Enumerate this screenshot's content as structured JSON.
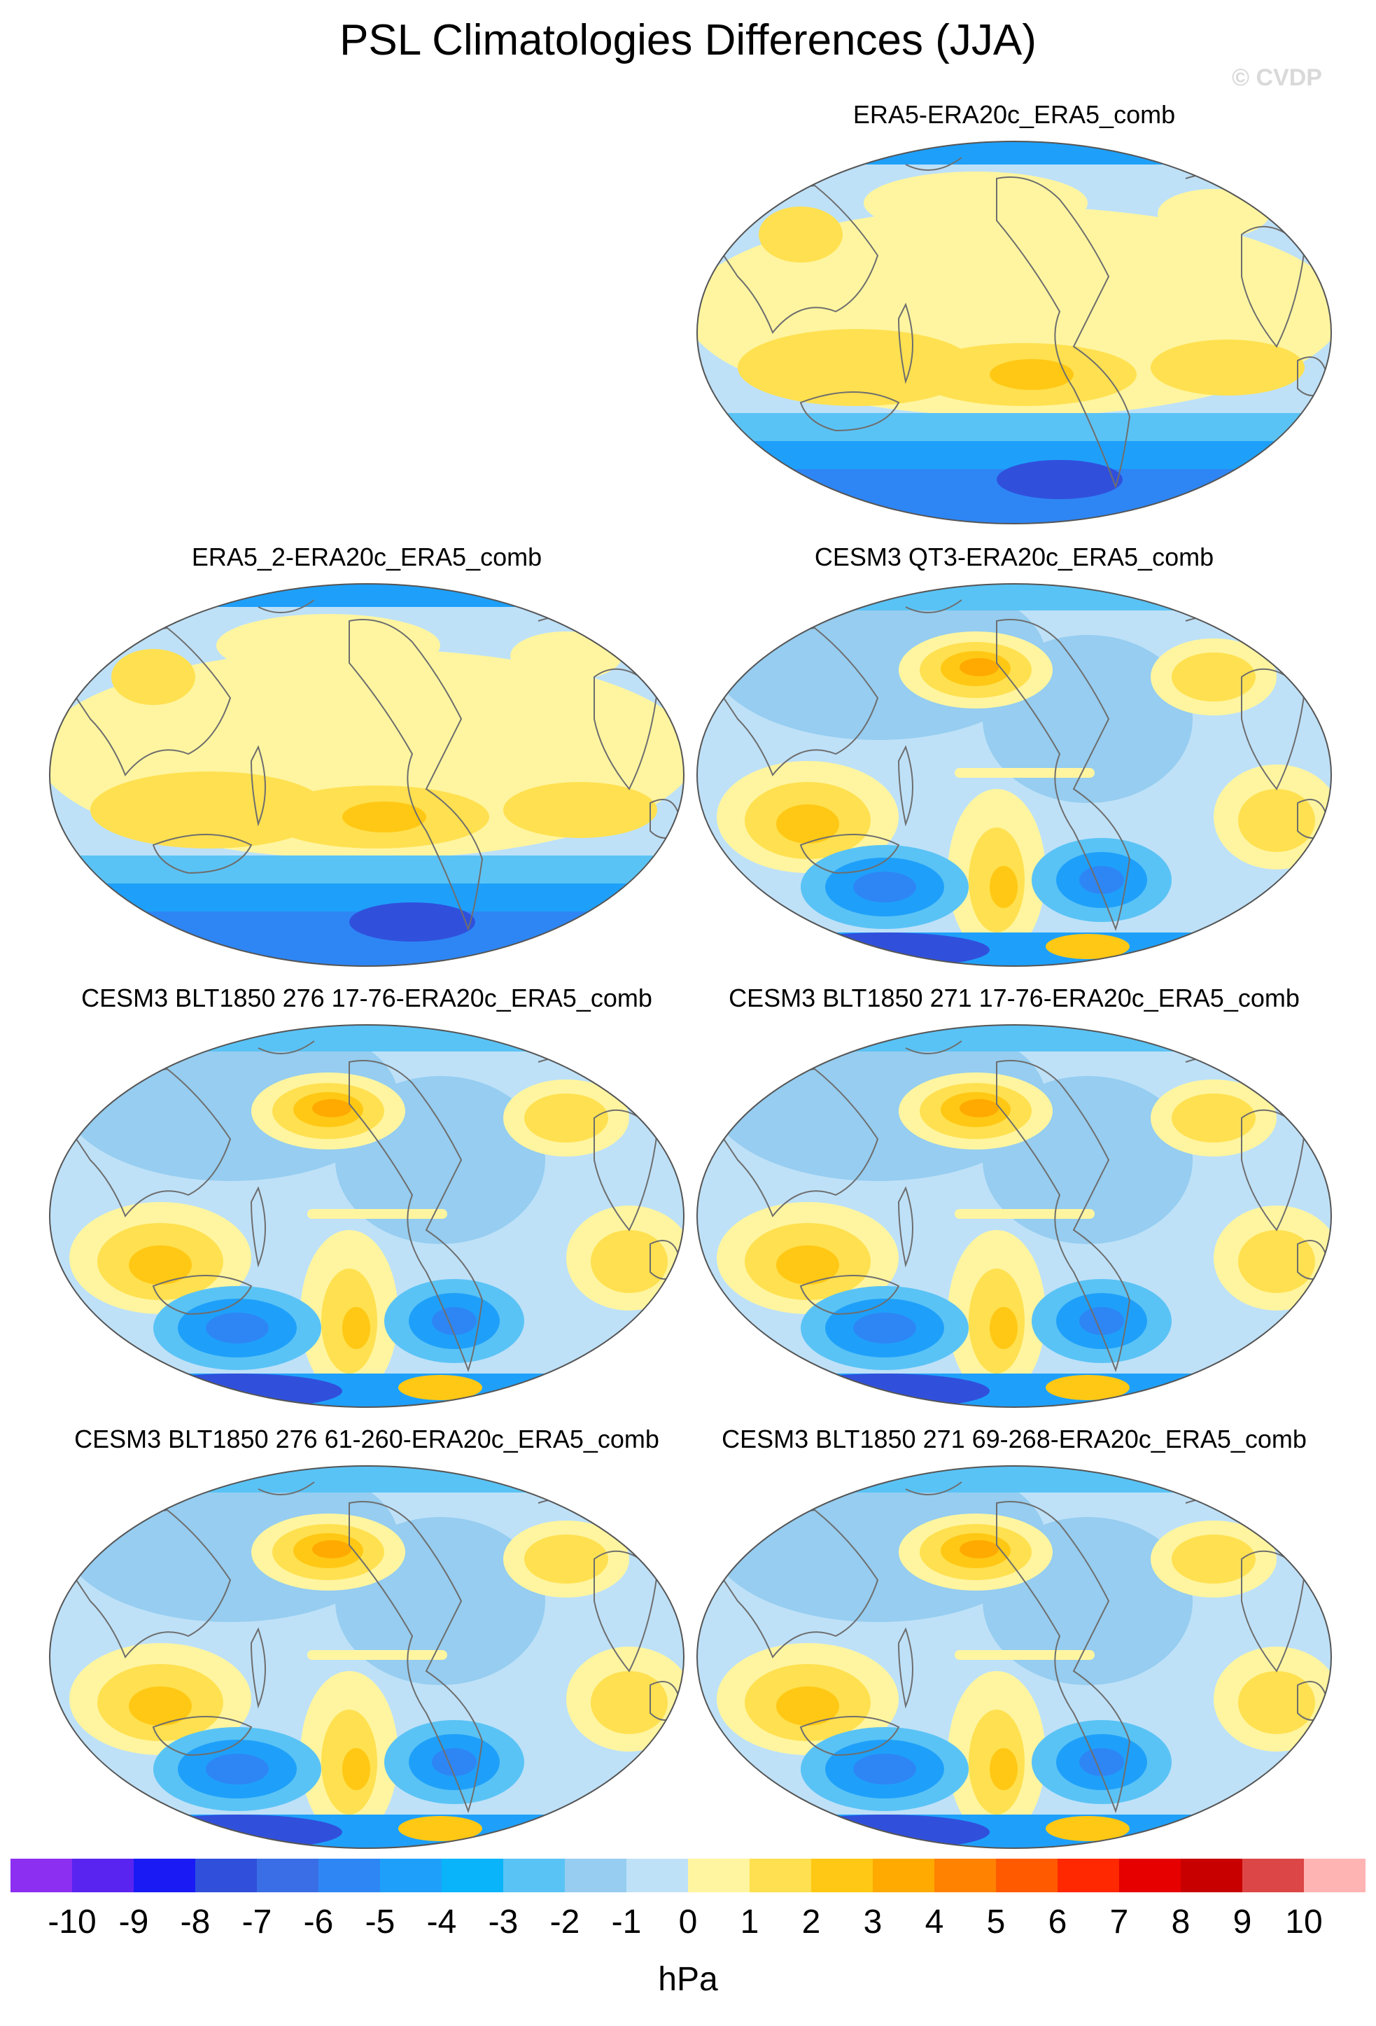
{
  "title": "PSL Climatologies Differences (JJA)",
  "watermark": "© CVDP",
  "panels": [
    {
      "label": "ERA5-ERA20c_ERA5_comb",
      "pattern": "reanalysis"
    },
    {
      "label": "ERA5_2-ERA20c_ERA5_comb",
      "pattern": "reanalysis"
    },
    {
      "label": "CESM3 QT3-ERA20c_ERA5_comb",
      "pattern": "model"
    },
    {
      "label": "CESM3 BLT1850 276 17-76-ERA20c_ERA5_comb",
      "pattern": "model"
    },
    {
      "label": "CESM3 BLT1850 271 17-76-ERA20c_ERA5_comb",
      "pattern": "model"
    },
    {
      "label": "CESM3 BLT1850 276 61-260-ERA20c_ERA5_comb",
      "pattern": "model"
    },
    {
      "label": "CESM3 BLT1850 271 69-268-ERA20c_ERA5_comb",
      "pattern": "model"
    }
  ],
  "colorbar": {
    "unit": "hPa",
    "ticks": [
      "-10",
      "-9",
      "-8",
      "-7",
      "-6",
      "-5",
      "-4",
      "-3",
      "-2",
      "-1",
      "0",
      "1",
      "2",
      "3",
      "4",
      "5",
      "6",
      "7",
      "8",
      "9",
      "10"
    ],
    "colors": [
      "#8c2ff0",
      "#5a24f0",
      "#1a1af5",
      "#3050dc",
      "#3a6ee6",
      "#2e86f5",
      "#1ea0fa",
      "#0ab4fa",
      "#5ac3f5",
      "#96cdf0",
      "#bee1f8",
      "#fff5a0",
      "#ffe050",
      "#ffc814",
      "#ffaa00",
      "#ff8200",
      "#ff5a00",
      "#ff2800",
      "#e60000",
      "#c80000",
      "#dc4646",
      "#ffb4b4"
    ]
  },
  "map_colors": {
    "ocean_base": "#bee1f8",
    "neg1": "#96cdf0",
    "neg2": "#5ac3f5",
    "neg3": "#1ea0fa",
    "neg4": "#2e86f5",
    "neg5": "#3050dc",
    "pos1": "#fff5a0",
    "pos2": "#ffe050",
    "pos3": "#ffc814",
    "pos4": "#ffaa00",
    "coast": "#6e6e6e"
  }
}
